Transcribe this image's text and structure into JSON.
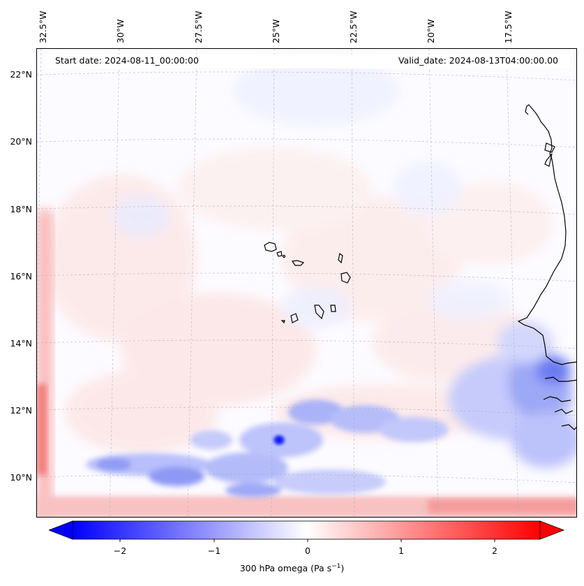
{
  "map": {
    "lon_ticks": [
      "32.5°W",
      "30°W",
      "27.5°W",
      "25°W",
      "22.5°W",
      "20°W",
      "17.5°W"
    ],
    "lat_ticks": [
      "22°N",
      "20°N",
      "18°N",
      "16°N",
      "14°N",
      "12°N",
      "10°N"
    ],
    "start_date": "Start date: 2024-08-11_00:00:00",
    "valid_date": "Valid_date: 2024-08-13T04:00:00.00",
    "field": "300 hPa omega",
    "extent": {
      "lon_min": -33,
      "lon_max": -15,
      "lat_min": 9,
      "lat_max": 22.8
    },
    "colormap": "bwr",
    "colors": {
      "negative": "#0000ff",
      "zero": "#ffffff",
      "positive": "#ff0000",
      "coast": "#000000",
      "grid": "#9a9aa8"
    }
  },
  "colorbar": {
    "ticks": [
      "−2",
      "−1",
      "0",
      "1",
      "2"
    ],
    "range": [
      -2.6,
      2.6
    ],
    "extend": "both",
    "label": "300 hPa omega (Pa s",
    "label_sup": "−1",
    "label_end": ")"
  }
}
